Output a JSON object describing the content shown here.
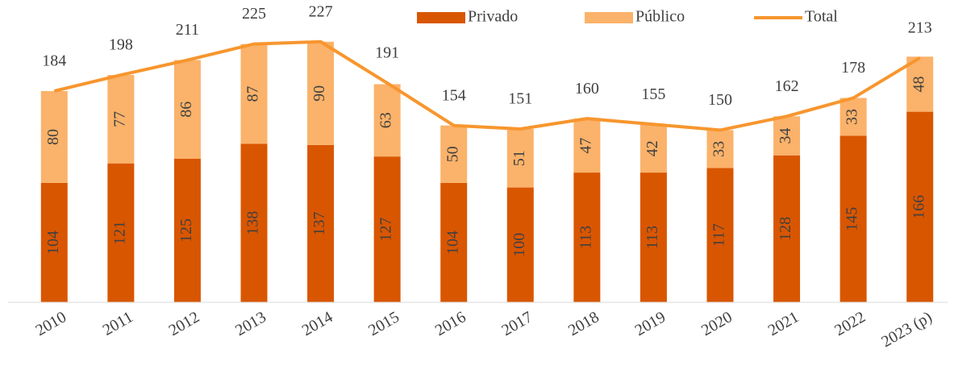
{
  "chart_data": {
    "type": "stacked-bar-line",
    "categories": [
      "2010",
      "2011",
      "2012",
      "2013",
      "2014",
      "2015",
      "2016",
      "2017",
      "2018",
      "2019",
      "2020",
      "2021",
      "2022",
      "2023 (p)"
    ],
    "series": [
      {
        "name": "Privado",
        "color": "#d95600",
        "kind": "bar",
        "values": [
          104,
          121,
          125,
          138,
          137,
          127,
          104,
          100,
          113,
          113,
          117,
          128,
          145,
          166
        ]
      },
      {
        "name": "Público",
        "color": "#fbb26a",
        "kind": "bar",
        "values": [
          80,
          77,
          86,
          87,
          90,
          63,
          50,
          51,
          47,
          42,
          33,
          34,
          33,
          48
        ]
      },
      {
        "name": "Total",
        "color": "#f7962e",
        "kind": "line",
        "values": [
          184,
          198,
          211,
          225,
          227,
          191,
          154,
          151,
          160,
          155,
          150,
          162,
          178,
          213
        ]
      }
    ],
    "ylim": [
      0,
      250
    ],
    "legend": "top"
  }
}
